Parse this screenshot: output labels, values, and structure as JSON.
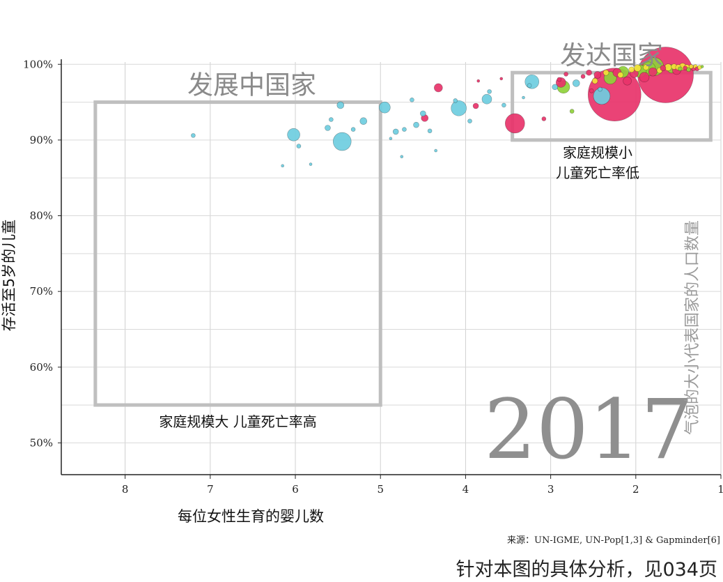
{
  "chart_data": {
    "type": "scatter",
    "xlabel": "每位女性生育的婴儿数",
    "ylabel": "存活至5岁的儿童",
    "x_ticks": [
      "8",
      "7",
      "6",
      "5",
      "4",
      "3",
      "2",
      "1"
    ],
    "y_ticks": [
      "50%",
      "60%",
      "70%",
      "80%",
      "90%",
      "100%"
    ],
    "xlim": [
      8.75,
      1.0
    ],
    "ylim": [
      45.8,
      100.3
    ],
    "x_reversed": true,
    "grid": true,
    "year": "2017",
    "size_legend": "气泡的大小代表国家的人口数量",
    "source": "来源：UN-IGME, UN-Pop[1,3] & Gapminder[6]",
    "footer": "针对本图的具体分析，见034页",
    "colors": {
      "blue": "#6ecde0",
      "pink": "#e8336a",
      "green": "#8fd13a",
      "yellow": "#f3e33a"
    },
    "regions": [
      {
        "label": "发展中国家",
        "note": "家庭规模大 儿童死亡率高",
        "x_range": [
          8.35,
          5.0
        ],
        "y_range": [
          55,
          95
        ]
      },
      {
        "label": "发达国家",
        "note_lines": [
          "家庭规模小",
          "儿童死亡率低"
        ],
        "x_range": [
          3.45,
          1.12
        ],
        "y_range": [
          90,
          98.9
        ]
      }
    ],
    "points": [
      {
        "x": 7.2,
        "y": 90.6,
        "size": 3,
        "color": "blue"
      },
      {
        "x": 6.15,
        "y": 86.6,
        "size": 2,
        "color": "blue"
      },
      {
        "x": 6.02,
        "y": 90.7,
        "size": 9,
        "color": "blue"
      },
      {
        "x": 5.96,
        "y": 89.2,
        "size": 3,
        "color": "blue"
      },
      {
        "x": 5.82,
        "y": 86.8,
        "size": 2,
        "color": "blue"
      },
      {
        "x": 5.62,
        "y": 91.6,
        "size": 4,
        "color": "blue"
      },
      {
        "x": 5.58,
        "y": 92.7,
        "size": 3,
        "color": "blue"
      },
      {
        "x": 5.47,
        "y": 94.6,
        "size": 5,
        "color": "blue"
      },
      {
        "x": 5.45,
        "y": 89.8,
        "size": 13,
        "color": "blue"
      },
      {
        "x": 5.32,
        "y": 91.4,
        "size": 3,
        "color": "blue"
      },
      {
        "x": 5.2,
        "y": 92.5,
        "size": 5,
        "color": "blue"
      },
      {
        "x": 4.95,
        "y": 94.3,
        "size": 8,
        "color": "blue"
      },
      {
        "x": 4.88,
        "y": 90.2,
        "size": 2,
        "color": "blue"
      },
      {
        "x": 4.82,
        "y": 91.1,
        "size": 4,
        "color": "blue"
      },
      {
        "x": 4.75,
        "y": 87.8,
        "size": 2,
        "color": "blue"
      },
      {
        "x": 4.72,
        "y": 91.4,
        "size": 3,
        "color": "blue"
      },
      {
        "x": 4.63,
        "y": 95.3,
        "size": 3,
        "color": "blue"
      },
      {
        "x": 4.58,
        "y": 92.0,
        "size": 4,
        "color": "blue"
      },
      {
        "x": 4.5,
        "y": 93.5,
        "size": 4,
        "color": "blue"
      },
      {
        "x": 4.48,
        "y": 92.9,
        "size": 5,
        "color": "pink"
      },
      {
        "x": 4.42,
        "y": 91.2,
        "size": 3,
        "color": "blue"
      },
      {
        "x": 4.35,
        "y": 88.6,
        "size": 2,
        "color": "blue"
      },
      {
        "x": 4.32,
        "y": 96.9,
        "size": 6,
        "color": "pink"
      },
      {
        "x": 4.12,
        "y": 95.2,
        "size": 3,
        "color": "blue"
      },
      {
        "x": 4.08,
        "y": 94.2,
        "size": 11,
        "color": "blue"
      },
      {
        "x": 3.95,
        "y": 92.5,
        "size": 3,
        "color": "blue"
      },
      {
        "x": 3.88,
        "y": 94.5,
        "size": 4,
        "color": "pink"
      },
      {
        "x": 3.85,
        "y": 97.8,
        "size": 2,
        "color": "pink"
      },
      {
        "x": 3.75,
        "y": 95.4,
        "size": 7,
        "color": "blue"
      },
      {
        "x": 3.72,
        "y": 96.4,
        "size": 3,
        "color": "blue"
      },
      {
        "x": 3.58,
        "y": 98.1,
        "size": 2,
        "color": "pink"
      },
      {
        "x": 3.55,
        "y": 94.6,
        "size": 3,
        "color": "blue"
      },
      {
        "x": 3.42,
        "y": 92.2,
        "size": 14,
        "color": "pink"
      },
      {
        "x": 3.32,
        "y": 95.6,
        "size": 2,
        "color": "blue"
      },
      {
        "x": 3.25,
        "y": 97.2,
        "size": 3,
        "color": "blue"
      },
      {
        "x": 3.22,
        "y": 97.7,
        "size": 10,
        "color": "blue"
      },
      {
        "x": 3.08,
        "y": 92.8,
        "size": 3,
        "color": "pink"
      },
      {
        "x": 2.95,
        "y": 97.0,
        "size": 4,
        "color": "blue"
      },
      {
        "x": 2.9,
        "y": 98.0,
        "size": 3,
        "color": "pink"
      },
      {
        "x": 2.88,
        "y": 97.6,
        "size": 7,
        "color": "pink"
      },
      {
        "x": 2.85,
        "y": 97.0,
        "size": 9,
        "color": "green"
      },
      {
        "x": 2.82,
        "y": 98.7,
        "size": 3,
        "color": "pink"
      },
      {
        "x": 2.75,
        "y": 93.8,
        "size": 3,
        "color": "green"
      },
      {
        "x": 2.7,
        "y": 97.5,
        "size": 5,
        "color": "blue"
      },
      {
        "x": 2.62,
        "y": 98.4,
        "size": 3,
        "color": "pink"
      },
      {
        "x": 2.55,
        "y": 98.9,
        "size": 4,
        "color": "pink"
      },
      {
        "x": 2.52,
        "y": 96.5,
        "size": 3,
        "color": "pink"
      },
      {
        "x": 2.48,
        "y": 97.8,
        "size": 4,
        "color": "yellow"
      },
      {
        "x": 2.45,
        "y": 98.6,
        "size": 5,
        "color": "pink"
      },
      {
        "x": 2.42,
        "y": 96.7,
        "size": 3,
        "color": "blue"
      },
      {
        "x": 2.4,
        "y": 95.8,
        "size": 12,
        "color": "blue"
      },
      {
        "x": 2.35,
        "y": 98.9,
        "size": 4,
        "color": "yellow"
      },
      {
        "x": 2.3,
        "y": 98.2,
        "size": 9,
        "color": "green"
      },
      {
        "x": 2.25,
        "y": 96.0,
        "size": 38,
        "color": "pink"
      },
      {
        "x": 2.22,
        "y": 98.9,
        "size": 6,
        "color": "pink"
      },
      {
        "x": 2.18,
        "y": 98.6,
        "size": 4,
        "color": "yellow"
      },
      {
        "x": 2.15,
        "y": 99.0,
        "size": 8,
        "color": "green"
      },
      {
        "x": 2.1,
        "y": 97.8,
        "size": 6,
        "color": "pink"
      },
      {
        "x": 2.05,
        "y": 99.3,
        "size": 4,
        "color": "yellow"
      },
      {
        "x": 2.02,
        "y": 98.8,
        "size": 6,
        "color": "pink"
      },
      {
        "x": 1.98,
        "y": 99.5,
        "size": 5,
        "color": "yellow"
      },
      {
        "x": 1.95,
        "y": 99.1,
        "size": 9,
        "color": "green"
      },
      {
        "x": 1.9,
        "y": 98.3,
        "size": 7,
        "color": "pink"
      },
      {
        "x": 1.88,
        "y": 99.6,
        "size": 4,
        "color": "yellow"
      },
      {
        "x": 1.85,
        "y": 99.4,
        "size": 10,
        "color": "green"
      },
      {
        "x": 1.8,
        "y": 99.0,
        "size": 6,
        "color": "pink"
      },
      {
        "x": 1.78,
        "y": 99.7,
        "size": 13,
        "color": "green"
      },
      {
        "x": 1.72,
        "y": 99.2,
        "size": 4,
        "color": "yellow"
      },
      {
        "x": 1.68,
        "y": 99.5,
        "size": 4,
        "color": "pink"
      },
      {
        "x": 1.65,
        "y": 98.6,
        "size": 40,
        "color": "pink"
      },
      {
        "x": 1.62,
        "y": 99.6,
        "size": 5,
        "color": "yellow"
      },
      {
        "x": 1.58,
        "y": 99.4,
        "size": 6,
        "color": "green"
      },
      {
        "x": 1.55,
        "y": 99.7,
        "size": 4,
        "color": "yellow"
      },
      {
        "x": 1.52,
        "y": 99.2,
        "size": 6,
        "color": "pink"
      },
      {
        "x": 1.5,
        "y": 99.6,
        "size": 4,
        "color": "yellow"
      },
      {
        "x": 1.48,
        "y": 99.4,
        "size": 3,
        "color": "green"
      },
      {
        "x": 1.45,
        "y": 99.7,
        "size": 5,
        "color": "yellow"
      },
      {
        "x": 1.42,
        "y": 99.5,
        "size": 3,
        "color": "pink"
      },
      {
        "x": 1.4,
        "y": 99.6,
        "size": 4,
        "color": "yellow"
      },
      {
        "x": 1.38,
        "y": 99.3,
        "size": 3,
        "color": "green"
      },
      {
        "x": 1.35,
        "y": 99.7,
        "size": 3,
        "color": "yellow"
      },
      {
        "x": 1.32,
        "y": 99.5,
        "size": 4,
        "color": "pink"
      },
      {
        "x": 1.3,
        "y": 99.7,
        "size": 3,
        "color": "yellow"
      },
      {
        "x": 1.28,
        "y": 99.4,
        "size": 3,
        "color": "pink"
      },
      {
        "x": 1.25,
        "y": 99.6,
        "size": 3,
        "color": "yellow"
      },
      {
        "x": 1.22,
        "y": 99.7,
        "size": 2,
        "color": "green"
      }
    ]
  }
}
